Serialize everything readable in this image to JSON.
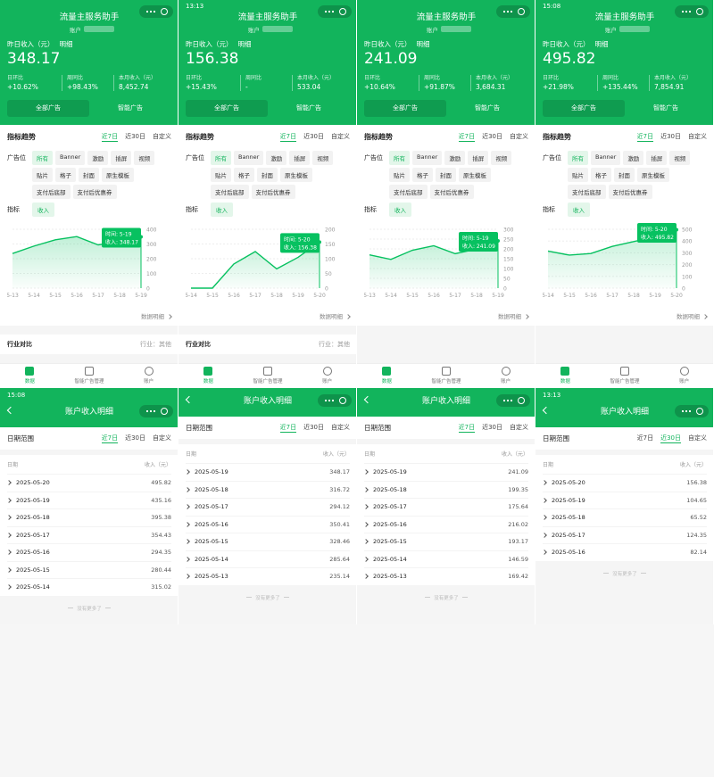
{
  "top_common": {
    "title": "流量主服务助手",
    "account_label": "账户",
    "income_label": "昨日收入（元）",
    "detail_link": "明细",
    "metric_labels": [
      "日环比",
      "周同比",
      "本月收入（元）"
    ],
    "buttons": [
      "全部广告",
      "智能广告"
    ],
    "trend_title": "指标趋势",
    "range_tabs": [
      "近7日",
      "近30日",
      "自定义"
    ],
    "ad_slot_label": "广告位",
    "ad_slots": [
      "所有",
      "Banner",
      "激励",
      "插屏",
      "视频",
      "贴片",
      "格子",
      "封面",
      "原生模板",
      "支付后底部",
      "支付后优惠券"
    ],
    "indicator_label": "指标",
    "indicator": "收入",
    "data_detail": "数据明细",
    "tabbar": [
      "数据",
      "智能广告管理",
      "账户"
    ]
  },
  "top_screens": [
    {
      "income": "348.17",
      "metrics": [
        "+10.62%",
        "+98.43%",
        "8,452.74"
      ],
      "industry": {
        "title": "行业对比",
        "value": "行业：其他"
      },
      "chart": {
        "type": "line",
        "color": "#07c160",
        "categories": [
          "5-13",
          "5-14",
          "5-15",
          "5-16",
          "5-17",
          "5-18",
          "5-19"
        ],
        "values": [
          235.14,
          285.64,
          328.46,
          350.41,
          294.12,
          316.72,
          348.17
        ],
        "ylim": [
          0,
          400
        ],
        "yticks": [
          0,
          100,
          200,
          300,
          400
        ],
        "tooltip": {
          "time": "时间: 5-19",
          "value": "收入: 348.17"
        }
      }
    },
    {
      "status_time": "13:13",
      "income": "156.38",
      "metrics": [
        "+15.43%",
        "-",
        "533.04"
      ],
      "industry": {
        "title": "行业对比",
        "value": "行业：其他"
      },
      "chart": {
        "type": "line",
        "color": "#07c160",
        "categories": [
          "5-14",
          "5-15",
          "5-16",
          "5-17",
          "5-18",
          "5-19",
          "5-20"
        ],
        "values": [
          0,
          0,
          82.14,
          124.35,
          65.52,
          104.65,
          156.38
        ],
        "ylim": [
          0,
          200
        ],
        "yticks": [
          0,
          50,
          100,
          150,
          200
        ],
        "tooltip": {
          "time": "时间: 5-20",
          "value": "收入: 156.38"
        }
      }
    },
    {
      "income": "241.09",
      "metrics": [
        "+10.64%",
        "+91.87%",
        "3,684.31"
      ],
      "chart": {
        "type": "line",
        "color": "#07c160",
        "categories": [
          "5-13",
          "5-14",
          "5-15",
          "5-16",
          "5-17",
          "5-18",
          "5-19"
        ],
        "values": [
          169.42,
          146.59,
          193.17,
          216.02,
          175.64,
          199.35,
          241.09
        ],
        "ylim": [
          0,
          300
        ],
        "yticks": [
          0,
          50,
          100,
          150,
          200,
          250,
          300
        ],
        "tooltip": {
          "time": "时间: 5-19",
          "value": "收入: 241.09"
        }
      }
    },
    {
      "status_time": "15:08",
      "income": "495.82",
      "metrics": [
        "+21.98%",
        "+135.44%",
        "7,854.91"
      ],
      "chart": {
        "type": "line",
        "color": "#07c160",
        "categories": [
          "5-14",
          "5-15",
          "5-16",
          "5-17",
          "5-18",
          "5-19",
          "5-20"
        ],
        "values": [
          315.02,
          280.44,
          294.35,
          354.43,
          395.38,
          435.16,
          495.82
        ],
        "ylim": [
          0,
          500
        ],
        "yticks": [
          0,
          100,
          200,
          300,
          400,
          500
        ],
        "tooltip": {
          "time": "时间: 5-20",
          "value": "收入: 495.82"
        }
      }
    }
  ],
  "bottom_common": {
    "title": "账户收入明细",
    "date_range": "日期范围",
    "range_tabs": [
      "近7日",
      "近30日",
      "自定义"
    ],
    "col_date": "日期",
    "col_income": "收入（元）",
    "footer": "没有更多了"
  },
  "bottom_screens": [
    {
      "status_time": "15:08",
      "selected_tab": 0,
      "rows": [
        [
          "2025-05-20",
          "495.82"
        ],
        [
          "2025-05-19",
          "435.16"
        ],
        [
          "2025-05-18",
          "395.38"
        ],
        [
          "2025-05-17",
          "354.43"
        ],
        [
          "2025-05-16",
          "294.35"
        ],
        [
          "2025-05-15",
          "280.44"
        ],
        [
          "2025-05-14",
          "315.02"
        ]
      ]
    },
    {
      "selected_tab": 0,
      "rows": [
        [
          "2025-05-19",
          "348.17"
        ],
        [
          "2025-05-18",
          "316.72"
        ],
        [
          "2025-05-17",
          "294.12"
        ],
        [
          "2025-05-16",
          "350.41"
        ],
        [
          "2025-05-15",
          "328.46"
        ],
        [
          "2025-05-14",
          "285.64"
        ],
        [
          "2025-05-13",
          "235.14"
        ]
      ]
    },
    {
      "selected_tab": 0,
      "rows": [
        [
          "2025-05-19",
          "241.09"
        ],
        [
          "2025-05-18",
          "199.35"
        ],
        [
          "2025-05-17",
          "175.64"
        ],
        [
          "2025-05-16",
          "216.02"
        ],
        [
          "2025-05-15",
          "193.17"
        ],
        [
          "2025-05-14",
          "146.59"
        ],
        [
          "2025-05-13",
          "169.42"
        ]
      ]
    },
    {
      "status_time": "13:13",
      "selected_tab": 1,
      "rows": [
        [
          "2025-05-20",
          "156.38"
        ],
        [
          "2025-05-19",
          "104.65"
        ],
        [
          "2025-05-18",
          "65.52"
        ],
        [
          "2025-05-17",
          "124.35"
        ],
        [
          "2025-05-16",
          "82.14"
        ]
      ]
    }
  ]
}
